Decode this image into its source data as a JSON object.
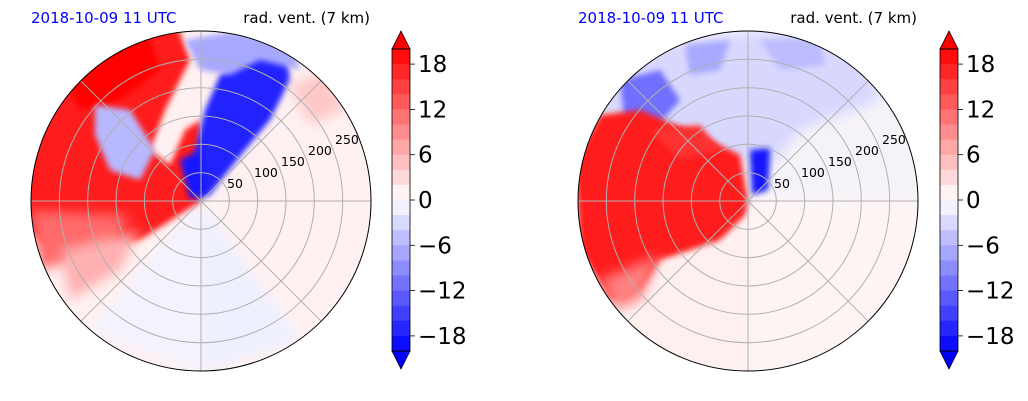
{
  "colors": {
    "positive": "#ff0000",
    "negative": "#0000ff",
    "neutral": "#ffffff",
    "grid": "#b0b0b0",
    "title_time": "#0000ff",
    "title_var": "#000000"
  },
  "chart_data": [
    {
      "type": "heatmap",
      "projection": "polar",
      "title_left": "2018-10-09 11 UTC",
      "title_right": "rad. vent. (7 km)",
      "radial_ticks": [
        "50",
        "100",
        "150",
        "200",
        "250"
      ],
      "rmax": 300,
      "colorbar": {
        "ticks": [
          "18",
          "12",
          "6",
          "0",
          "−6",
          "−12",
          "−18"
        ],
        "vmin": -20,
        "vmax": 20,
        "levels": 20,
        "extend": "both",
        "cmap": "bwr"
      },
      "regions": [
        {
          "sign": "positive",
          "az_from": 270,
          "az_to": 360,
          "strength": "strong"
        },
        {
          "sign": "negative",
          "az_from": 5,
          "az_to": 50,
          "strength": "strong"
        },
        {
          "sign": "positive",
          "az_from": 50,
          "az_to": 360,
          "strength": "weak"
        }
      ]
    },
    {
      "type": "heatmap",
      "projection": "polar",
      "title_left": "2018-10-09 11 UTC",
      "title_right": "rad. vent. (7 km)",
      "radial_ticks": [
        "50",
        "100",
        "150",
        "200",
        "250"
      ],
      "rmax": 300,
      "colorbar": {
        "ticks": [
          "18",
          "12",
          "6",
          "0",
          "−6",
          "−12",
          "−18"
        ],
        "vmin": -20,
        "vmax": 20,
        "levels": 20,
        "extend": "both",
        "cmap": "bwr"
      },
      "regions": [
        {
          "sign": "positive",
          "az_from": 225,
          "az_to": 320,
          "strength": "strong"
        },
        {
          "sign": "negative",
          "az_from": 320,
          "az_to": 90,
          "strength": "weak"
        }
      ]
    }
  ]
}
